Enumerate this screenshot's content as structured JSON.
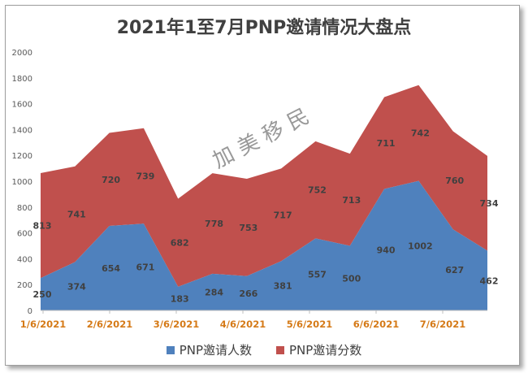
{
  "chart_data": {
    "type": "area",
    "stacked": true,
    "title": "2021年1至7月PNP邀请情况大盘点",
    "watermark": "加 美 移 民",
    "ylim": [
      0,
      2000
    ],
    "yticks": [
      "0",
      "200",
      "400",
      "600",
      "800",
      "1000",
      "1200",
      "1400",
      "1600",
      "1800",
      "2000"
    ],
    "xtick_labels": [
      "1/6/2021",
      "2/6/2021",
      "3/6/2021",
      "4/6/2021",
      "5/6/2021",
      "6/6/2021",
      "7/6/2021"
    ],
    "series": [
      {
        "name": "PNP邀请人数",
        "color": "#4f81bd",
        "values": [
          250,
          374,
          654,
          671,
          183,
          284,
          266,
          381,
          557,
          500,
          940,
          1002,
          627,
          462
        ]
      },
      {
        "name": "PNP邀请分数",
        "color": "#c0504d",
        "values": [
          813,
          741,
          720,
          739,
          682,
          778,
          753,
          717,
          752,
          713,
          711,
          742,
          760,
          734
        ]
      }
    ],
    "data_label_indices": [
      0,
      1,
      2,
      3,
      4,
      5,
      6,
      7,
      8,
      9,
      10,
      11,
      12,
      13
    ],
    "legend_position": "bottom"
  }
}
